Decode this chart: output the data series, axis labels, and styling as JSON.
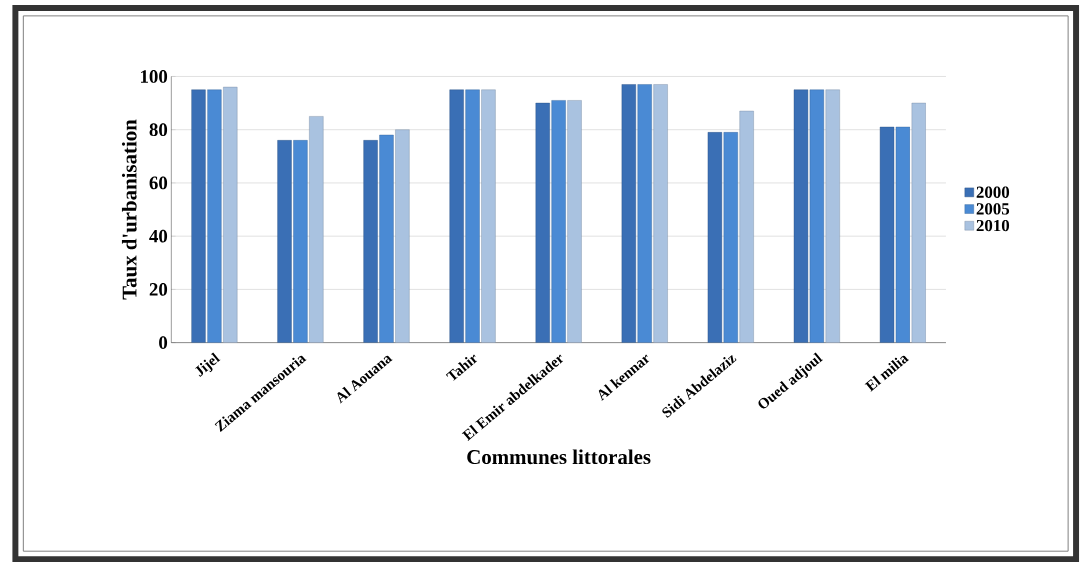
{
  "chart_data": {
    "type": "bar",
    "xlabel": "Communes littorales",
    "ylabel": "Taux d'urbanisation",
    "categories": [
      "Jijel",
      "Ziama mansouria",
      "Al Aouana",
      "Tahir",
      "El Emir abdelkader",
      "Al kennar",
      "Sidi Abdelaziz",
      "Oued adjoul",
      "El milia"
    ],
    "series": [
      {
        "name": "2000",
        "color": "#3a6fb5",
        "values": [
          95,
          76,
          76,
          95,
          90,
          97,
          79,
          95,
          81
        ]
      },
      {
        "name": "2005",
        "color": "#4a8ad4",
        "values": [
          95,
          76,
          78,
          95,
          91,
          97,
          79,
          95,
          81
        ]
      },
      {
        "name": "2010",
        "color": "#a9c2e0",
        "values": [
          96,
          85,
          80,
          95,
          91,
          97,
          87,
          95,
          90
        ]
      }
    ],
    "ylim": [
      0,
      100
    ],
    "yticks": [
      0,
      20,
      40,
      60,
      80,
      100
    ],
    "grid": "y",
    "legend": "right"
  }
}
